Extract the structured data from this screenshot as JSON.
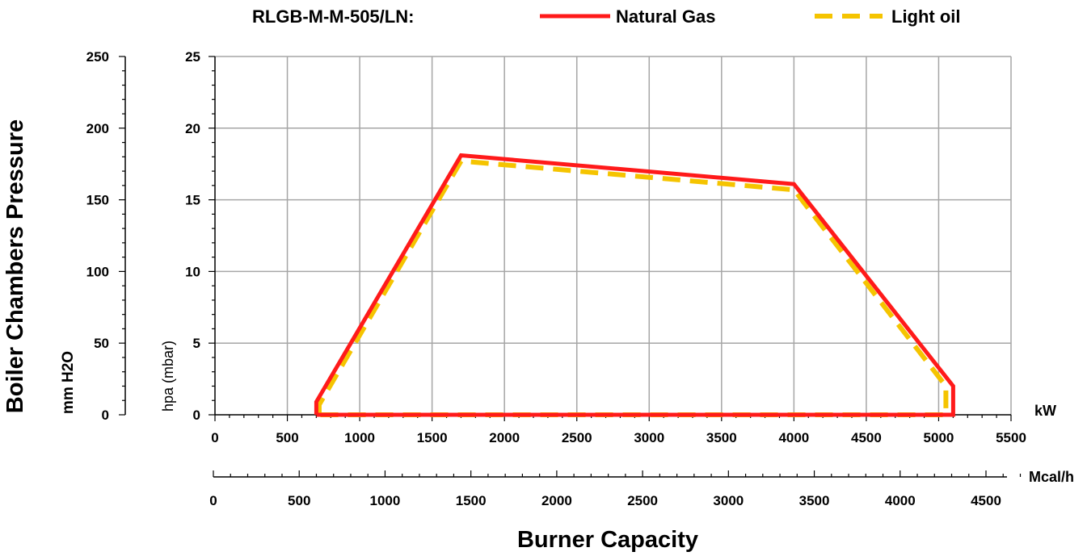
{
  "chart_data": {
    "type": "line",
    "title": "RLGB-M-M-505/LN:",
    "xlabel": "Burner Capacity",
    "ylabel": "Boiler Chambers Pressure",
    "x_unit_primary": "kW",
    "x_unit_secondary": "Mcal/h",
    "y_unit_left": "mm H2O",
    "y_unit_inner": "hpa (mbar)",
    "xlim_kw": [
      0,
      5500
    ],
    "xticks_kw": [
      0,
      500,
      1000,
      1500,
      2000,
      2500,
      3000,
      3500,
      4000,
      4500,
      5000,
      5500
    ],
    "xlim_mcal": [
      0,
      4730
    ],
    "xticks_mcal": [
      0,
      500,
      1000,
      1500,
      2000,
      2500,
      3000,
      3500,
      4000,
      4500
    ],
    "ylim_hpa": [
      0,
      25
    ],
    "yticks_hpa": [
      0,
      5,
      10,
      15,
      20,
      25
    ],
    "ylim_mmh2o": [
      0,
      250
    ],
    "yticks_mmh2o": [
      0,
      50,
      100,
      150,
      200,
      250
    ],
    "grid": true,
    "legend_position": "top",
    "series": [
      {
        "name": "Natural Gas",
        "color": "#ff1a1a",
        "style": "solid",
        "x": [
          700,
          700,
          1700,
          4000,
          5100,
          5100,
          700
        ],
        "y": [
          0,
          0.9,
          18.1,
          16.1,
          2.0,
          0,
          0
        ]
      },
      {
        "name": "Light oil",
        "color": "#f5c400",
        "style": "dashed",
        "x": [
          720,
          720,
          1700,
          4000,
          5050,
          5050,
          720
        ],
        "y": [
          0,
          0.7,
          17.7,
          15.7,
          2.0,
          0,
          0
        ]
      }
    ]
  }
}
